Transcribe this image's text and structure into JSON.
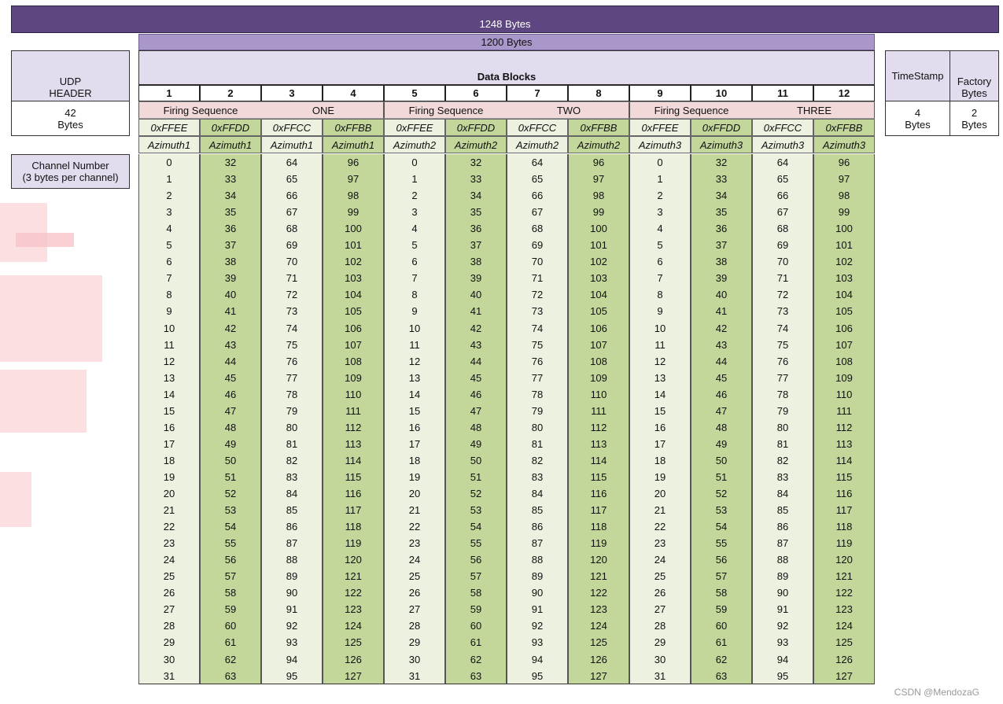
{
  "top_bar": {
    "label": "1248 Bytes"
  },
  "data_bar": {
    "label": "1200 Bytes"
  },
  "udp_header": {
    "line1": "UDP",
    "line2": "HEADER",
    "size_num": "42",
    "size_unit": "Bytes"
  },
  "channel_label": {
    "line1": "Channel Number",
    "line2": "(3 bytes per channel)"
  },
  "data_blocks_title": "Data Blocks",
  "timestamp": {
    "label": "TimeStamp",
    "size_num": "4",
    "size_unit": "Bytes"
  },
  "factory": {
    "line1": "Factory",
    "line2": "Bytes",
    "size_num": "2",
    "size_unit": "Bytes"
  },
  "firing_groups": [
    {
      "left": "Firing Sequence",
      "right": "ONE"
    },
    {
      "left": "Firing Sequence",
      "right": "TWO"
    },
    {
      "left": "Firing Sequence",
      "right": "THREE"
    }
  ],
  "blocks": [
    {
      "num": "1",
      "hex": "0xFFEE",
      "az": "Azimuth1"
    },
    {
      "num": "2",
      "hex": "0xFFDD",
      "az": "Azimuth1"
    },
    {
      "num": "3",
      "hex": "0xFFCC",
      "az": "Azimuth1"
    },
    {
      "num": "4",
      "hex": "0xFFBB",
      "az": "Azimuth1"
    },
    {
      "num": "5",
      "hex": "0xFFEE",
      "az": "Azimuth2"
    },
    {
      "num": "6",
      "hex": "0xFFDD",
      "az": "Azimuth2"
    },
    {
      "num": "7",
      "hex": "0xFFCC",
      "az": "Azimuth2"
    },
    {
      "num": "8",
      "hex": "0xFFBB",
      "az": "Azimuth2"
    },
    {
      "num": "9",
      "hex": "0xFFEE",
      "az": "Azimuth3"
    },
    {
      "num": "10",
      "hex": "0xFFDD",
      "az": "Azimuth3"
    },
    {
      "num": "11",
      "hex": "0xFFCC",
      "az": "Azimuth3"
    },
    {
      "num": "12",
      "hex": "0xFFBB",
      "az": "Azimuth3"
    }
  ],
  "channel_rows": 32,
  "channel_offsets": [
    0,
    32,
    64,
    96
  ],
  "watermark": "CSDN @MendozaG"
}
